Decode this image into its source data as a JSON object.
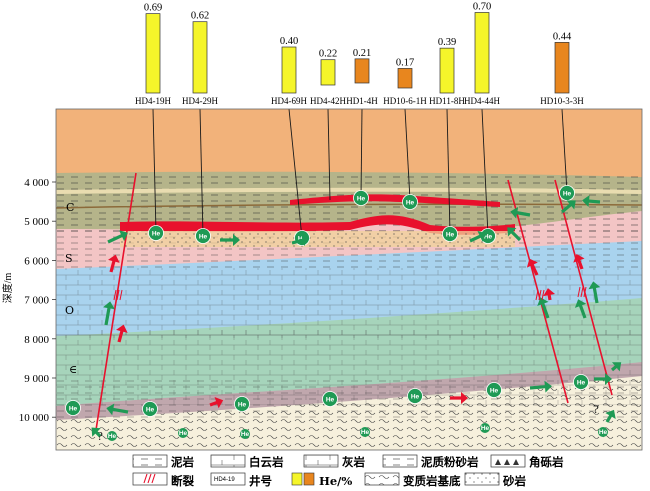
{
  "axis": {
    "ylabel": "深度/m",
    "ticks": [
      "4 000",
      "5 000",
      "6 000",
      "7 000",
      "8 000",
      "9 000",
      "10 000"
    ],
    "tick_depths": [
      4000,
      5000,
      6000,
      7000,
      8000,
      9000,
      10000
    ]
  },
  "strata": [
    "C",
    "S",
    "O",
    "∈"
  ],
  "wells": [
    {
      "name": "HD4-19H",
      "value": "0.69",
      "he": 0.69,
      "color": "yellow"
    },
    {
      "name": "HD4-29H",
      "value": "0.62",
      "he": 0.62,
      "color": "yellow"
    },
    {
      "name": "HD4-69H",
      "value": "0.40",
      "he": 0.4,
      "color": "yellow"
    },
    {
      "name": "HD4-42H",
      "value": "0.22",
      "he": 0.22,
      "color": "yellow"
    },
    {
      "name": "HD1-4H",
      "value": "0.21",
      "he": 0.21,
      "color": "orange"
    },
    {
      "name": "HD10-6-1H",
      "value": "0.17",
      "he": 0.17,
      "color": "orange"
    },
    {
      "name": "HD11-8H",
      "value": "0.39",
      "he": 0.39,
      "color": "yellow"
    },
    {
      "name": "HD4-44H",
      "value": "0.70",
      "he": 0.7,
      "color": "yellow"
    },
    {
      "name": "HD10-3-3H",
      "value": "0.44",
      "he": 0.44,
      "color": "orange"
    }
  ],
  "markers": {
    "he": "He",
    "unknown": "?"
  },
  "legend": {
    "row1": [
      "泥岩",
      "白云岩",
      "灰岩",
      "泥质粉砂岩",
      "角砾岩"
    ],
    "row2": [
      "断裂",
      "井号",
      "He/%",
      "变质岩基底",
      "砂岩"
    ],
    "well_example": "HD4-19"
  },
  "colors": {
    "yellow_bar": "#f5f52a",
    "orange_bar": "#e8861e",
    "top_layer": "#f2b27a",
    "carboniferous": "#b5b48a",
    "reservoir_red": "#e8112d",
    "silurian": "#f3c5c5",
    "ordovician": "#a9d3ee",
    "cambrian": "#a6d4bb",
    "basement_mauve": "#c0a7ad",
    "basement": "#f6f0dc",
    "fault": "#e8112d",
    "he_circle": "#1f9a55"
  }
}
